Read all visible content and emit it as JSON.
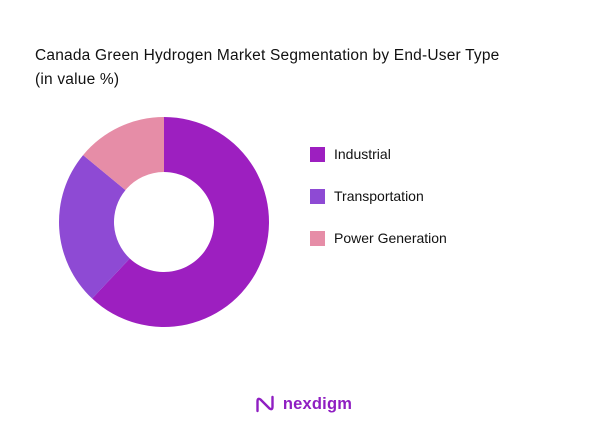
{
  "chart_data": {
    "type": "pie",
    "donut": true,
    "title": "Canada Green Hydrogen Market Segmentation by End-User Type",
    "subtitle": "(in value %)",
    "start_angle_deg": -90,
    "direction": "clockwise",
    "legend_position": "right",
    "series": [
      {
        "name": "Industrial",
        "value": 62,
        "color": "#9D1FC0"
      },
      {
        "name": "Transportation",
        "value": 24,
        "color": "#8E4AD4"
      },
      {
        "name": "Power Generation",
        "value": 14,
        "color": "#E68DA7"
      }
    ]
  },
  "legend": {
    "items": [
      {
        "label": "Industrial",
        "color": "#9D1FC0"
      },
      {
        "label": "Transportation",
        "color": "#8E4AD4"
      },
      {
        "label": "Power Generation",
        "color": "#E68DA7"
      }
    ]
  },
  "footer": {
    "brand": "nexdigm",
    "brand_color": "#8F1EC2"
  }
}
